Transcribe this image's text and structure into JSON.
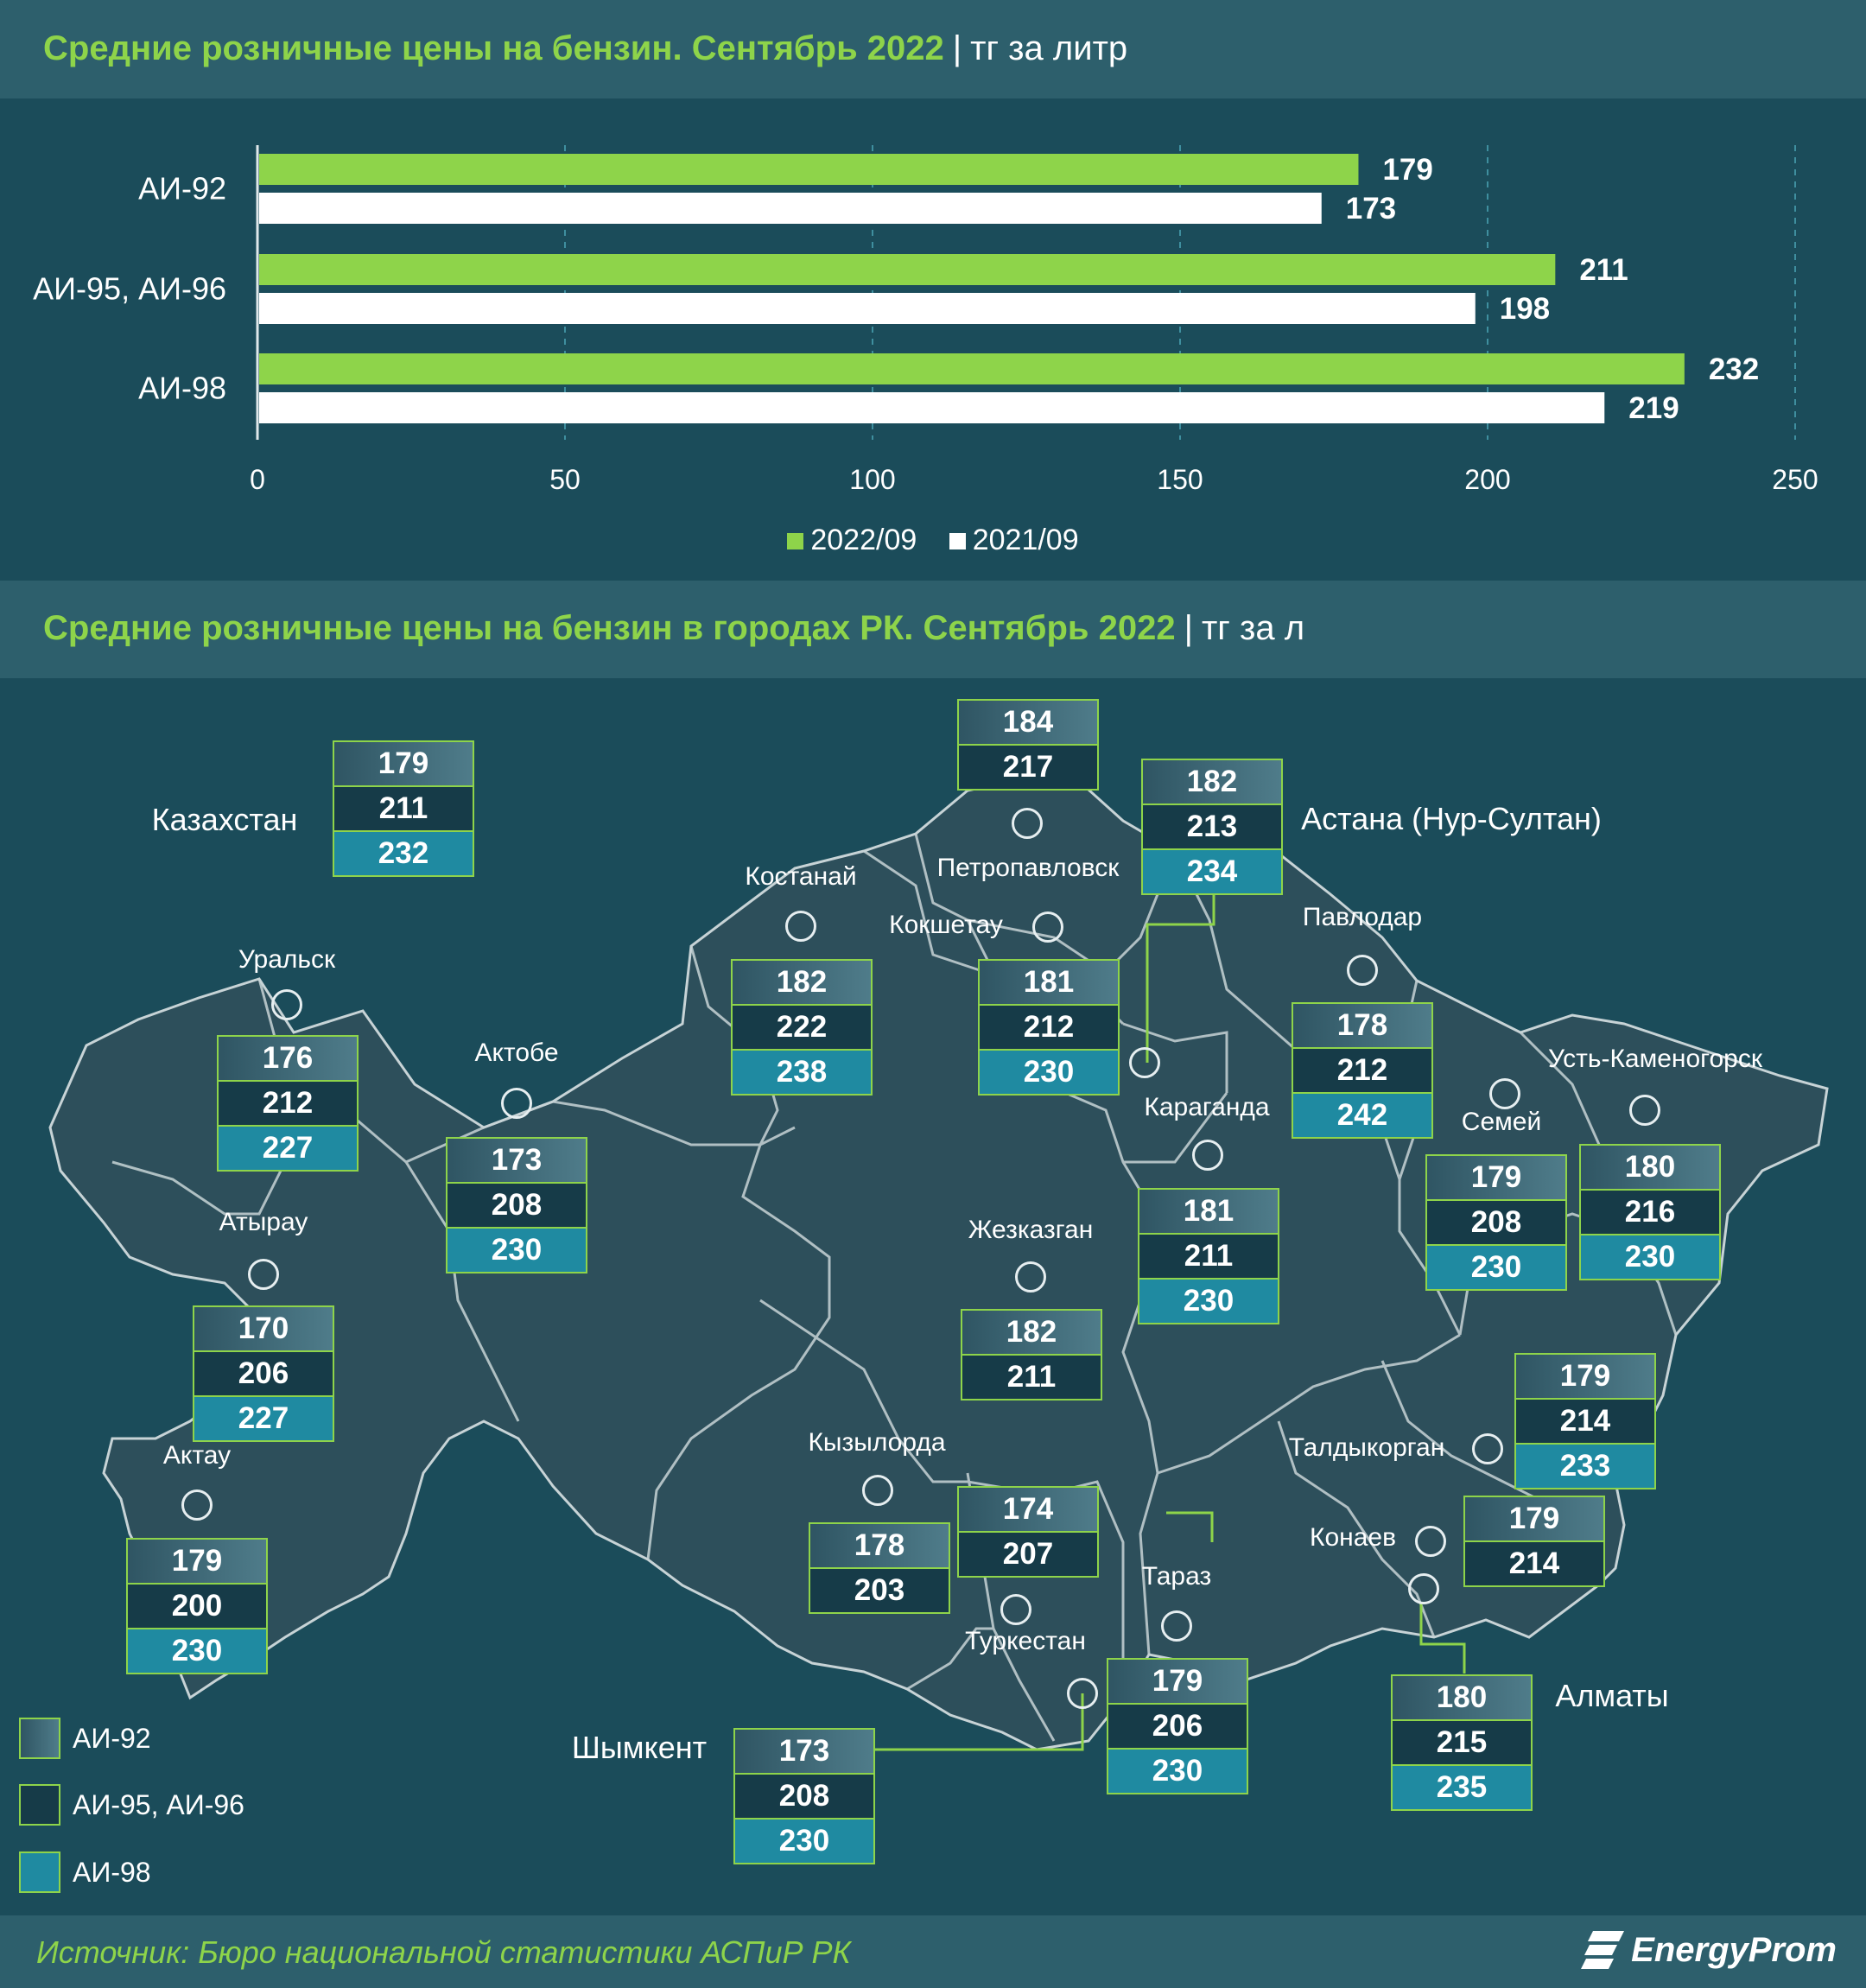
{
  "chart_title": {
    "title": "Средние розничные цены на бензин. Сентябрь 2022",
    "separator": "|",
    "unit": "тг за литр"
  },
  "map_title": {
    "title": "Средние розничные цены на бензин в городах РК. Сентябрь 2022",
    "separator": "|",
    "unit": "тг за л"
  },
  "chart_data": [
    {
      "type": "bar",
      "orientation": "horizontal",
      "categories": [
        "АИ-92",
        "АИ-95, АИ-96",
        "АИ-98"
      ],
      "series": [
        {
          "name": "2022/09",
          "values": [
            179,
            211,
            232
          ],
          "color": "#8ed44a"
        },
        {
          "name": "2021/09",
          "values": [
            173,
            198,
            219
          ],
          "color": "#ffffff"
        }
      ],
      "xlim": [
        0,
        250
      ],
      "xticks": [
        0,
        50,
        100,
        150,
        200,
        250
      ],
      "grid": "vertical dashed",
      "legend_position": "bottom-center"
    },
    {
      "type": "table",
      "description_of_rows": "city prices by fuel grade",
      "columns": [
        "АИ-92",
        "АИ-95, АИ-96",
        "АИ-98"
      ],
      "rows": [
        {
          "city": "Казахстан",
          "values": [
            179,
            211,
            232
          ]
        },
        {
          "city": "Петропавловск",
          "values": [
            184,
            217
          ]
        },
        {
          "city": "Астана (Нур-Султан)",
          "values": [
            182,
            213,
            234
          ]
        },
        {
          "city": "Костанай",
          "values": [
            182,
            222,
            238
          ]
        },
        {
          "city": "Кокшетау",
          "values": [
            181,
            212,
            230
          ]
        },
        {
          "city": "Павлодар",
          "values": [
            178,
            212,
            242
          ]
        },
        {
          "city": "Уральск",
          "values": [
            176,
            212,
            227
          ]
        },
        {
          "city": "Актобе",
          "values": [
            173,
            208,
            230
          ]
        },
        {
          "city": "Усть-Каменогорск",
          "values": [
            180,
            216,
            230
          ]
        },
        {
          "city": "Семей",
          "values": [
            179,
            208,
            230
          ]
        },
        {
          "city": "Караганда",
          "values": [
            181,
            211,
            230
          ]
        },
        {
          "city": "Жезказган",
          "values": [
            182,
            211
          ]
        },
        {
          "city": "Атырау",
          "values": [
            170,
            206,
            227
          ]
        },
        {
          "city": "Талдыкорган",
          "values": [
            179,
            214,
            233
          ]
        },
        {
          "city": "Кызылорда",
          "values": [
            178,
            203
          ]
        },
        {
          "city": "Туркестан",
          "values": [
            174,
            207
          ]
        },
        {
          "city": "Конаев",
          "values": [
            179,
            214
          ]
        },
        {
          "city": "Актау",
          "values": [
            179,
            200,
            230
          ]
        },
        {
          "city": "Тараз",
          "values": [
            179,
            206,
            230
          ]
        },
        {
          "city": "Алматы",
          "values": [
            180,
            215,
            235
          ]
        },
        {
          "city": "Шымкент",
          "values": [
            173,
            208,
            230
          ]
        }
      ]
    }
  ],
  "map_legend": [
    "АИ-92",
    "АИ-95, АИ-96",
    "АИ-98"
  ],
  "colors": {
    "background": "#1b4c5a",
    "band": "#2d5f6c",
    "accent_green": "#8ed44a",
    "ai92": "#4f7c8a",
    "ai95": "#163b48",
    "ai98": "#1f8aa1",
    "map_fill": "#2d4f5b"
  },
  "footer": {
    "source": "Источник: Бюро национальной статистики АСПиР РК",
    "logo": "EnergyProm"
  }
}
